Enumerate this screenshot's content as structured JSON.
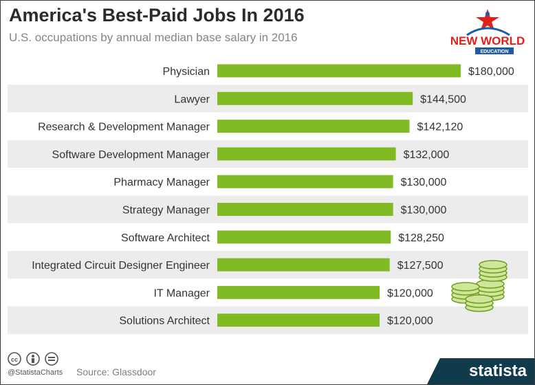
{
  "header": {
    "title": "America's Best-Paid Jobs In 2016",
    "subtitle": "U.S. occupations by annual median base salary in 2016"
  },
  "logo": {
    "line1": "NEW WORLD",
    "line2": "EDUCATION"
  },
  "footer": {
    "handle": "@StatistaCharts",
    "source": "Source: Glassdoor",
    "brand": "statista",
    "license_icons": [
      "cc-icon",
      "by-icon",
      "nd-icon"
    ]
  },
  "colors": {
    "bar": "#80bb24",
    "band": "#ececec",
    "brand_bg": "#0f3b4d",
    "logo_red": "#e0201a",
    "logo_blue": "#1f5aa8"
  },
  "chart_data": {
    "type": "bar",
    "orientation": "horizontal",
    "title": "America's Best-Paid Jobs In 2016",
    "subtitle": "U.S. occupations by annual median base salary in 2016",
    "categories": [
      "Physician",
      "Lawyer",
      "Research & Development Manager",
      "Software Development Manager",
      "Pharmacy Manager",
      "Strategy Manager",
      "Software Architect",
      "Integrated Circuit Designer Engineer",
      "IT Manager",
      "Solutions Architect"
    ],
    "values": [
      180000,
      144500,
      142120,
      132000,
      130000,
      130000,
      128250,
      127500,
      120000,
      120000
    ],
    "labels": [
      "$180,000",
      "$144,500",
      "$142,120",
      "$132,000",
      "$130,000",
      "$130,000",
      "$128,250",
      "$127,500",
      "$120,000",
      "$120,000"
    ],
    "xlim": [
      0,
      180000
    ],
    "grid": false,
    "legend": "none"
  }
}
